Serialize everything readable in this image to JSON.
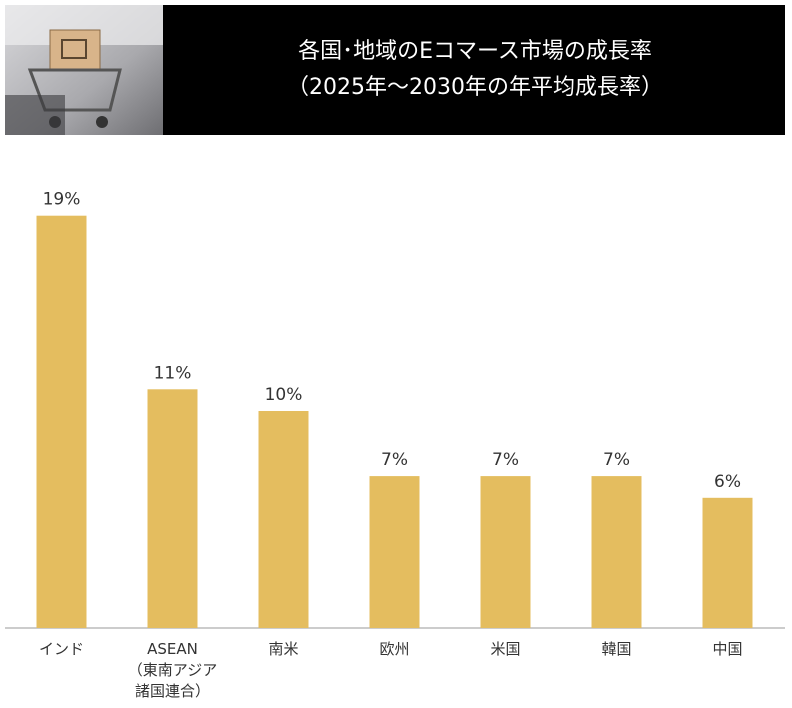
{
  "chart_data": {
    "type": "bar",
    "title": "各国･地域のEコマース市場の成長率",
    "subtitle": "（2025年～2030年の年平均成長率）",
    "categories": [
      "インド",
      "ASEAN\n（東南アジア\n諸国連合）",
      "南米",
      "欧州",
      "米国",
      "韓国",
      "中国"
    ],
    "values": [
      19,
      11,
      10,
      7,
      7,
      7,
      6
    ],
    "value_labels": [
      "19%",
      "11%",
      "10%",
      "7%",
      "7%",
      "7%",
      "6%"
    ],
    "color": "#e4bd5f"
  }
}
